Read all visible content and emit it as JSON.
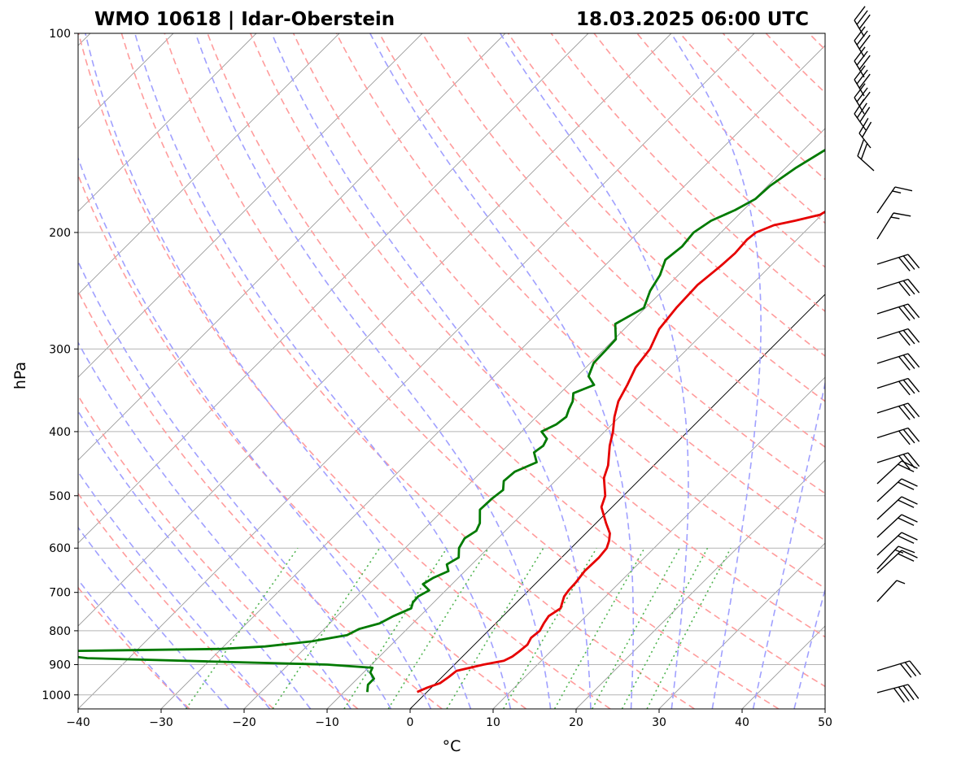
{
  "title_left": "WMO 10618 | Idar-Oberstein",
  "title_right": "18.03.2025 06:00 UTC",
  "chart_data": {
    "type": "line",
    "subtype": "skew-t log-p",
    "xlabel": "°C",
    "ylabel": "hPa",
    "xlim": [
      -40,
      50
    ],
    "ylim": [
      1050,
      100
    ],
    "y_scale": "log",
    "x_ticks": [
      -40,
      -30,
      -20,
      -10,
      0,
      10,
      20,
      30,
      40,
      50
    ],
    "x_tick_labels": [
      "−40",
      "−30",
      "−20",
      "−10",
      "0",
      "10",
      "20",
      "30",
      "40",
      "50"
    ],
    "y_ticks": [
      1000,
      900,
      800,
      700,
      600,
      500,
      400,
      300,
      200,
      100
    ],
    "y_tick_labels": [
      "1000",
      "900",
      "800",
      "700",
      "600",
      "500",
      "400",
      "300",
      "200",
      "100"
    ],
    "grid": true,
    "colors": {
      "temperature": "#e60000",
      "dewpoint": "#007a00",
      "dry_adiabats": "#ff9c9c",
      "moist_adiabats": "#a0a0ff",
      "mixing_ratio": "#50b450",
      "isotherms": "#9a9a9a",
      "isobars": "#b4b4b4"
    },
    "series": [
      {
        "key": "temperature",
        "p": [
          990,
          975,
          960,
          940,
          920,
          900,
          888,
          875,
          860,
          840,
          820,
          800,
          780,
          760,
          740,
          725,
          710,
          695,
          675,
          650,
          620,
          600,
          585,
          570,
          550,
          520,
          500,
          470,
          450,
          420,
          400,
          380,
          360,
          340,
          320,
          300,
          280,
          260,
          240,
          225,
          215,
          205,
          200,
          195,
          192,
          188,
          185,
          178,
          172,
          168,
          162,
          155,
          150,
          145,
          138,
          132,
          128,
          123,
          118,
          113,
          108,
          103,
          100
        ],
        "t": [
          -1.2,
          -0.5,
          0.5,
          0.8,
          1.0,
          3.5,
          5.5,
          6.0,
          6.2,
          6.4,
          6.0,
          6.2,
          5.8,
          5.5,
          6.0,
          5.5,
          5.0,
          4.8,
          4.7,
          4.4,
          4.5,
          4.3,
          3.7,
          2.9,
          1.2,
          -1.3,
          -2.2,
          -4.5,
          -5.5,
          -7.7,
          -9.0,
          -10.6,
          -12.0,
          -12.9,
          -14.0,
          -14.5,
          -15.8,
          -16.3,
          -16.5,
          -16.0,
          -15.8,
          -16.0,
          -15.8,
          -14.5,
          -12.5,
          -10.2,
          -9.8,
          -9.5,
          -9.5,
          -9.0,
          -8.5,
          -7.8,
          -7.3,
          -7.3,
          -6.0,
          -5.5,
          -5.7,
          -4.3,
          -3.5,
          -3.5,
          -2.6,
          -2.3,
          -1.4
        ]
      },
      {
        "key": "dewpoint",
        "p": [
          990,
          965,
          945,
          925,
          910,
          900,
          890,
          880,
          872,
          862,
          858,
          852,
          845,
          830,
          812,
          795,
          780,
          760,
          740,
          725,
          710,
          695,
          680,
          665,
          650,
          635,
          620,
          600,
          580,
          565,
          550,
          525,
          505,
          490,
          475,
          460,
          445,
          430,
          420,
          410,
          400,
          390,
          380,
          370,
          360,
          350,
          340,
          330,
          315,
          300,
          290,
          275,
          260,
          245,
          232,
          220,
          210,
          200,
          192,
          185,
          178,
          170,
          160,
          150,
          140,
          130,
          120,
          110,
          100
        ],
        "td": [
          -7.2,
          -8.0,
          -8.0,
          -9.2,
          -9.5,
          -15.3,
          -30.0,
          -45.0,
          -48.0,
          -47.0,
          -47.0,
          -30.0,
          -25.0,
          -20.0,
          -16.5,
          -15.8,
          -14.0,
          -13.2,
          -12.0,
          -12.5,
          -12.6,
          -12.0,
          -13.5,
          -13.0,
          -12.0,
          -13.0,
          -12.4,
          -13.5,
          -14.0,
          -13.5,
          -14.0,
          -15.6,
          -15.5,
          -15.2,
          -16.2,
          -16.0,
          -14.5,
          -16.0,
          -15.7,
          -16.1,
          -17.6,
          -16.7,
          -16.4,
          -17.0,
          -17.5,
          -18.4,
          -16.9,
          -18.6,
          -19.6,
          -19.7,
          -19.8,
          -21.7,
          -20.2,
          -21.5,
          -22.2,
          -23.4,
          -23.0,
          -23.3,
          -22.6,
          -21.0,
          -19.9,
          -19.7,
          -18.8,
          -17.4,
          -16.0,
          -14.7,
          -13.5,
          -12.0,
          -10.4
        ]
      }
    ]
  }
}
